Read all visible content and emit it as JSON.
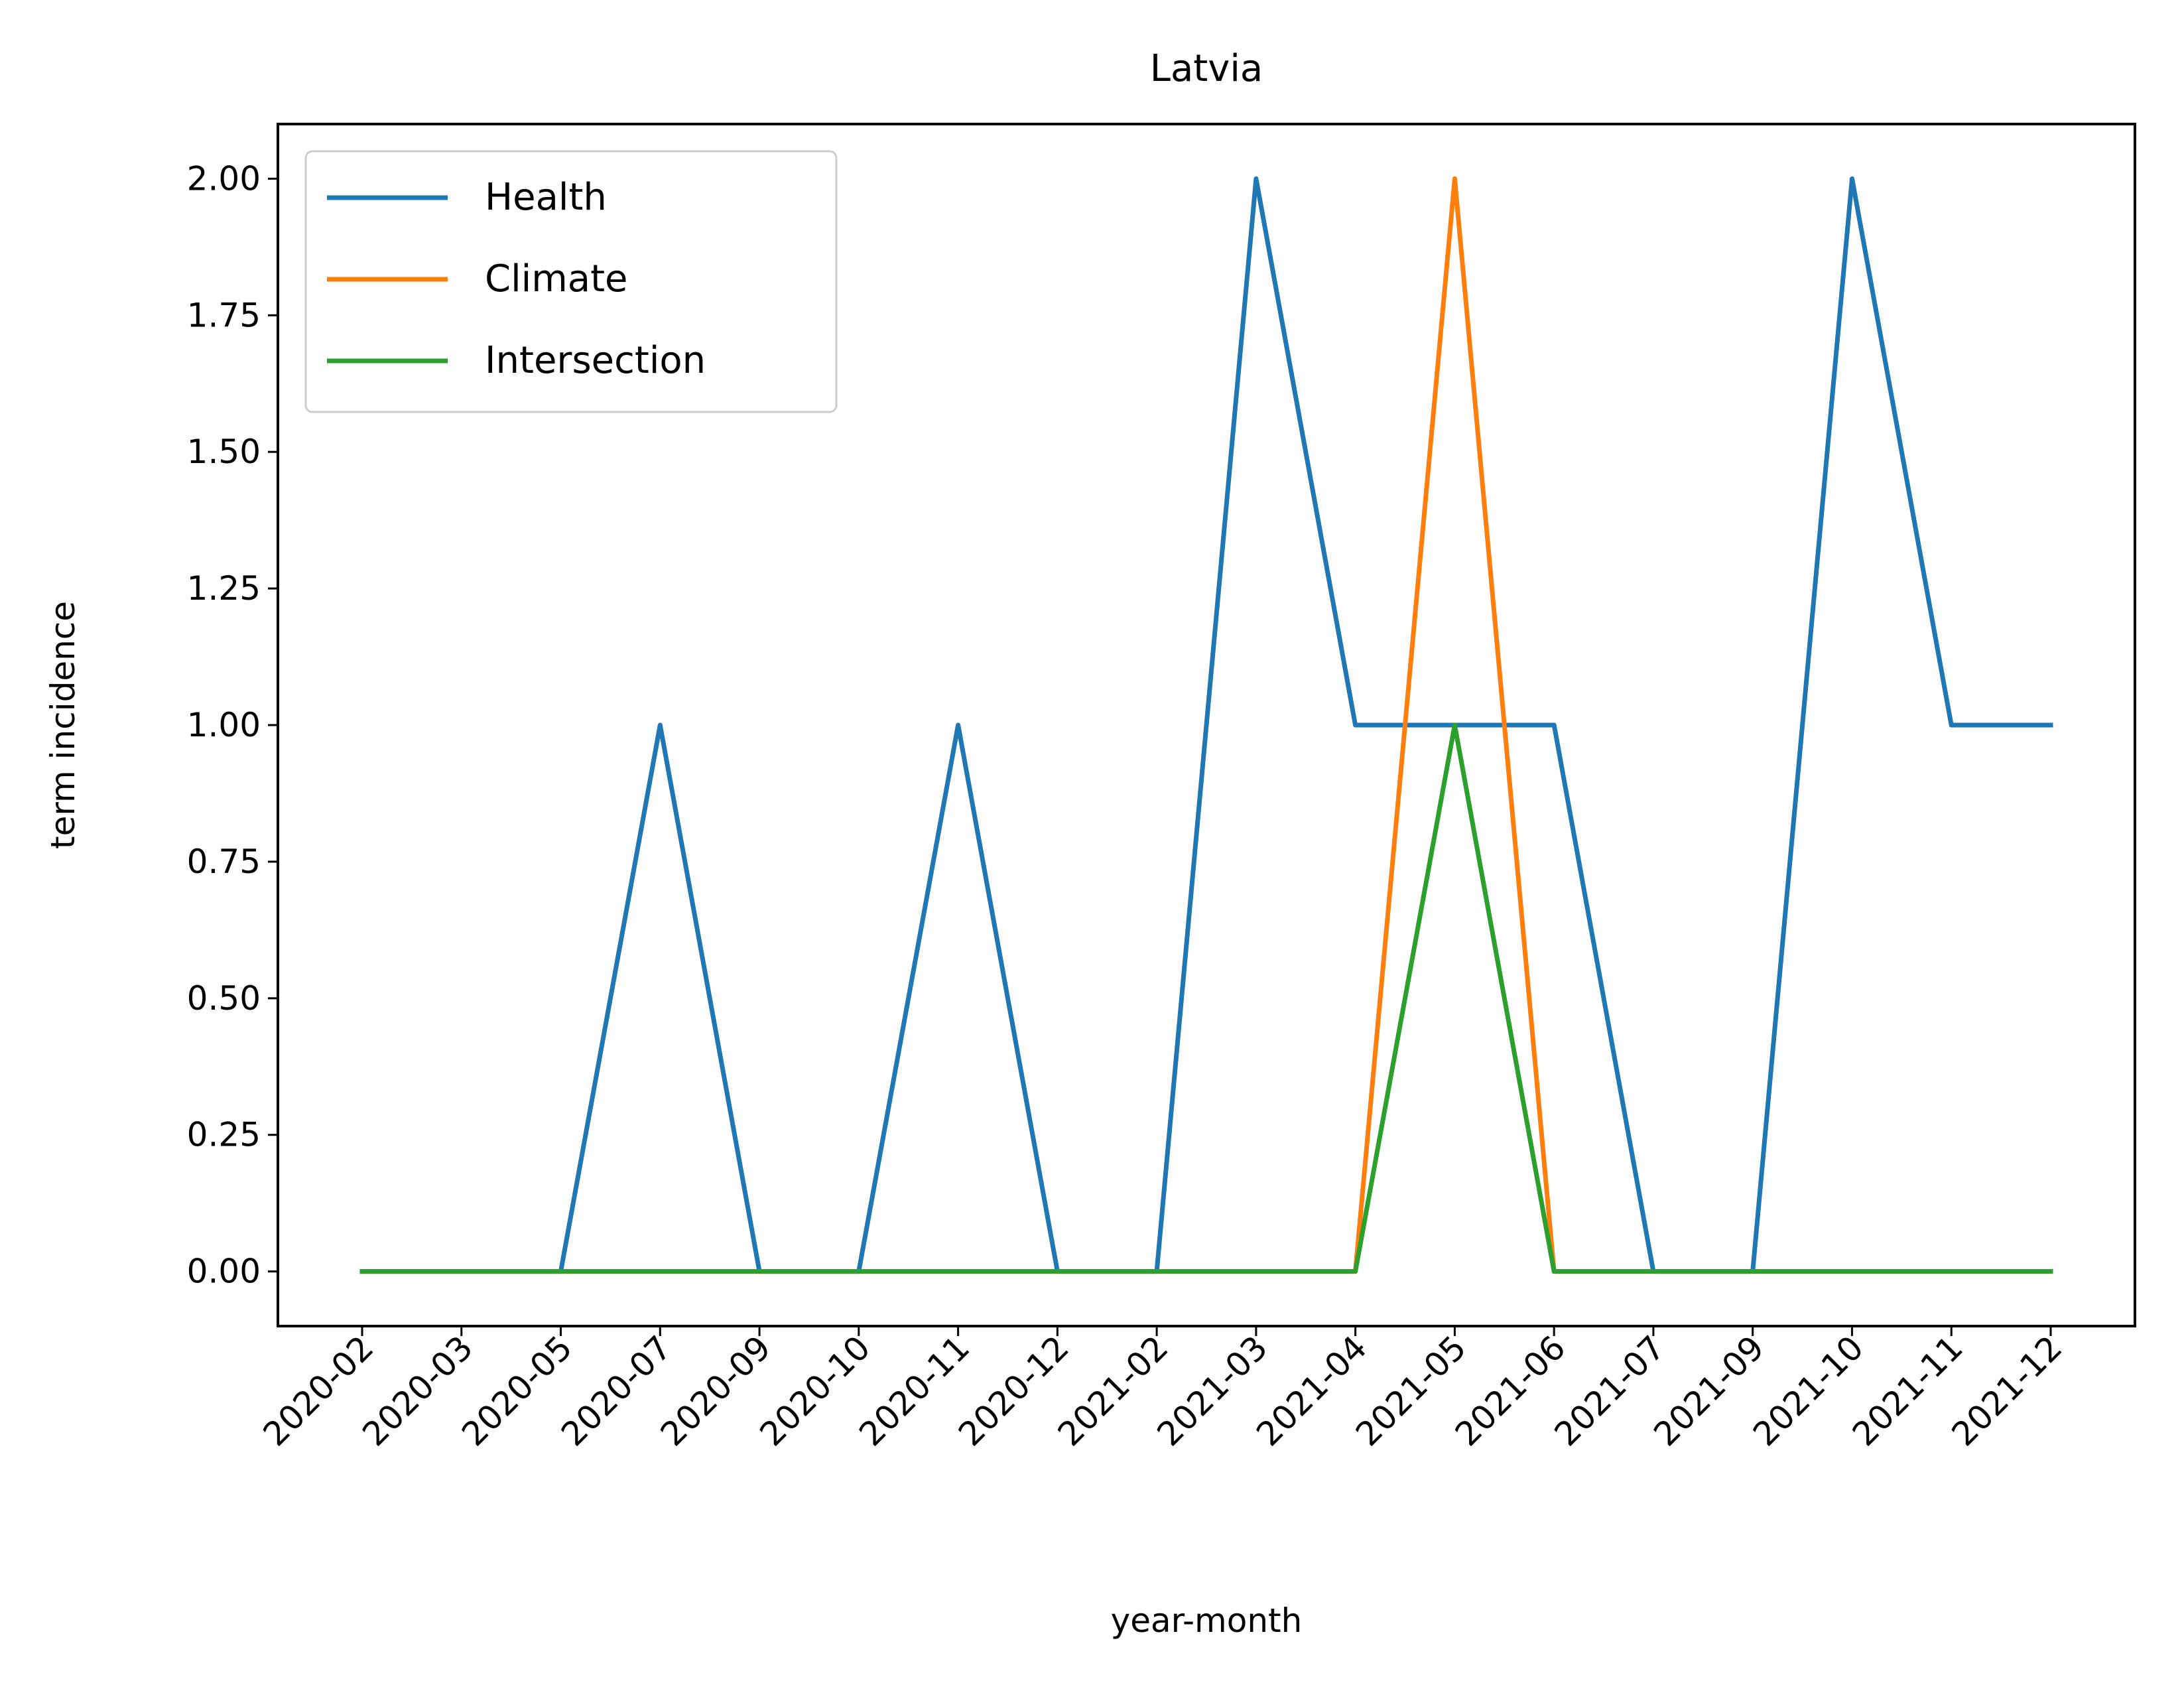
{
  "chart_data": {
    "type": "line",
    "title": "Latvia",
    "xlabel": "year-month",
    "ylabel": "term incidence",
    "categories": [
      "2020-02",
      "2020-03",
      "2020-05",
      "2020-07",
      "2020-09",
      "2020-10",
      "2020-11",
      "2020-12",
      "2021-02",
      "2021-03",
      "2021-04",
      "2021-05",
      "2021-06",
      "2021-07",
      "2021-09",
      "2021-10",
      "2021-11",
      "2021-12"
    ],
    "series": [
      {
        "name": "Health",
        "color": "#1f77b4",
        "values": [
          0,
          0,
          0,
          1,
          0,
          0,
          1,
          0,
          0,
          2,
          1,
          1,
          1,
          0,
          0,
          2,
          1,
          1
        ]
      },
      {
        "name": "Climate",
        "color": "#ff7f0e",
        "values": [
          0,
          0,
          0,
          0,
          0,
          0,
          0,
          0,
          0,
          0,
          0,
          2,
          0,
          0,
          0,
          0,
          0,
          0
        ]
      },
      {
        "name": "Intersection",
        "color": "#2ca02c",
        "values": [
          0,
          0,
          0,
          0,
          0,
          0,
          0,
          0,
          0,
          0,
          0,
          1,
          0,
          0,
          0,
          0,
          0,
          0
        ]
      }
    ],
    "ylim": [
      -0.1,
      2.1
    ],
    "yticks": [
      "0.00",
      "0.25",
      "0.50",
      "0.75",
      "1.00",
      "1.25",
      "1.50",
      "1.75",
      "2.00"
    ],
    "grid": false,
    "legend_position": "top-left"
  }
}
